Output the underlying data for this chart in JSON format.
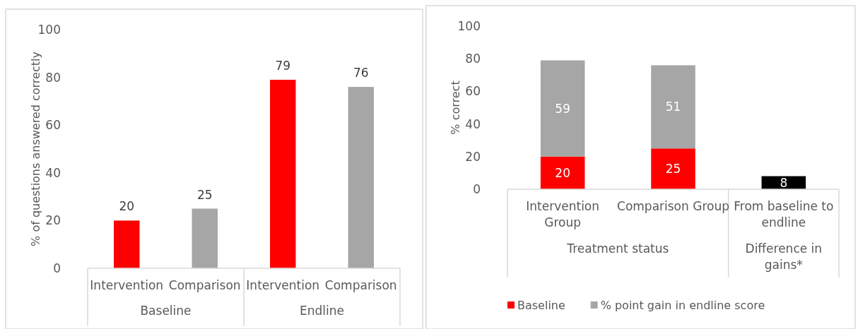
{
  "chart_data": [
    {
      "type": "bar",
      "ylabel": "% of questions answered correctly",
      "categories": [
        "Intervention",
        "Comparison",
        "Intervention",
        "Comparison"
      ],
      "values": [
        20,
        25,
        79,
        76
      ],
      "colors": [
        "#ff0000",
        "#a6a6a6",
        "#ff0000",
        "#a6a6a6"
      ],
      "ylim": [
        0,
        100
      ],
      "yticks": [
        0,
        20,
        40,
        60,
        80,
        100
      ],
      "data_labels": true,
      "grid": false,
      "legend": false,
      "annotations": [
        "Baseline",
        "Endline"
      ]
    },
    {
      "type": "bar",
      "ylabel": "% correct",
      "stacked": true,
      "categories": [
        "Intervention Group",
        "Comparison Group",
        "From baseline to endline"
      ],
      "series": [
        {
          "name": "Baseline",
          "color": "#ff0000",
          "values": [
            20,
            25,
            null
          ]
        },
        {
          "name": "% point gain in endline score",
          "color": "#a6a6a6",
          "values": [
            59,
            51,
            null
          ]
        },
        {
          "color": "#000000",
          "values": [
            null,
            null,
            8
          ]
        }
      ],
      "ylim": [
        0,
        100
      ],
      "yticks": [
        0,
        20,
        40,
        60,
        80,
        100
      ],
      "data_labels": true,
      "grid": false,
      "legend": "bottom",
      "annotations": [
        "Treatment status",
        "Difference in gains*"
      ]
    }
  ]
}
